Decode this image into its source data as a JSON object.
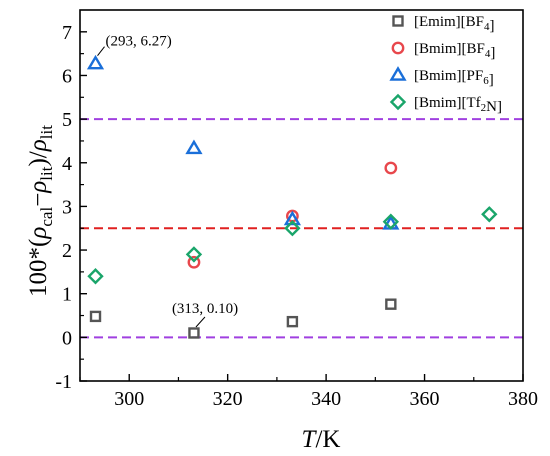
{
  "chart_data": {
    "type": "scatter",
    "xlabel": "T/K",
    "ylabel": "100*(ρcal−ρlit)/ρlit",
    "xlim": [
      290,
      380
    ],
    "ylim": [
      -1,
      7.5
    ],
    "xticks": [
      300,
      320,
      340,
      360,
      380
    ],
    "yticks": [
      -1,
      0,
      1,
      2,
      3,
      4,
      5,
      6,
      7
    ],
    "series": [
      {
        "name": "[Emim][BF4]",
        "marker": "square",
        "color": "#555555",
        "x": [
          293.15,
          313.15,
          333.15,
          353.15
        ],
        "y": [
          0.48,
          0.1,
          0.36,
          0.76
        ]
      },
      {
        "name": "[Bmim][BF4]",
        "marker": "circle",
        "color": "#e8474c",
        "x": [
          313.15,
          333.15,
          353.15
        ],
        "y": [
          1.72,
          2.78,
          3.88
        ]
      },
      {
        "name": "[Bmim][PF6]",
        "marker": "triangle",
        "color": "#1a6fd9",
        "x": [
          293.15,
          313.15,
          333.15,
          353.15
        ],
        "y": [
          6.27,
          4.33,
          2.7,
          2.6
        ]
      },
      {
        "name": "[Bmim][Tf2N]",
        "marker": "diamond",
        "color": "#1aa56a",
        "x": [
          293.15,
          313.15,
          333.15,
          353.15,
          373.15
        ],
        "y": [
          1.4,
          1.9,
          2.5,
          2.65,
          2.82
        ]
      }
    ],
    "reference_lines": [
      {
        "y": 5,
        "color": "#a040e0",
        "style": "dashed"
      },
      {
        "y": 2.5,
        "color": "#e02020",
        "style": "dashed"
      },
      {
        "y": 0,
        "color": "#a040e0",
        "style": "dashed"
      }
    ],
    "annotations": [
      {
        "text": "(293, 6.27)",
        "x": 293.15,
        "y": 6.27
      },
      {
        "text": "(313, 0.10)",
        "x": 313.15,
        "y": 0.1
      }
    ],
    "legend_position": "top-right",
    "grid": false
  }
}
